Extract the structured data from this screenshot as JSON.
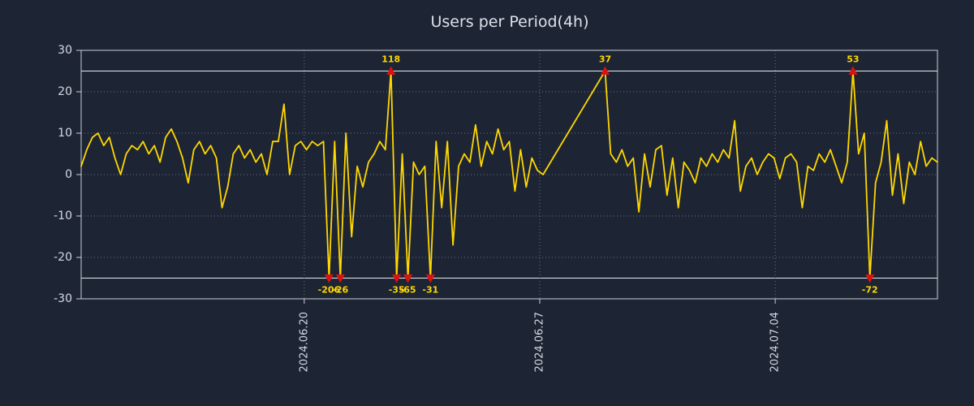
{
  "title": "Users per Period(4h)",
  "colors": {
    "background": "#1d2534",
    "title": "#dce1ea",
    "line": "#ffd700",
    "marker": "#dd1111",
    "marker_label": "#ffd700",
    "axis_text": "#d4d9e2",
    "grid": "#8a93a5",
    "clip_line": "#e6e9ef",
    "border": "#c9ced8"
  },
  "chart_data": {
    "type": "line",
    "title": "Users per Period(4h)",
    "xlabel": "",
    "ylabel": "",
    "ylim": [
      -30,
      30
    ],
    "yticks": [
      30,
      20,
      10,
      0,
      -10,
      -20,
      -30
    ],
    "clip_threshold": 25,
    "grid": true,
    "legend": false,
    "x_ticks": [
      {
        "pos": 39.6,
        "label": "2024.06.20"
      },
      {
        "pos": 81.4,
        "label": "2024.06.27"
      },
      {
        "pos": 123.2,
        "label": "2024.07.04"
      }
    ],
    "series": [
      {
        "name": "users",
        "values": [
          2,
          6,
          9,
          10,
          7,
          9,
          4,
          0,
          5,
          7,
          6,
          8,
          5,
          7,
          3,
          9,
          11,
          8,
          4,
          -2,
          6,
          8,
          5,
          7,
          4,
          -8,
          -3,
          5,
          7,
          4,
          6,
          3,
          5,
          0,
          8,
          8,
          17,
          0,
          7,
          8,
          6,
          8,
          7,
          8,
          -206,
          8,
          -26,
          10,
          -15,
          2,
          -3,
          3,
          5,
          8,
          6,
          118,
          -35,
          5,
          -65,
          3,
          0,
          2,
          -31,
          8,
          -8,
          8,
          -17,
          2,
          5,
          3,
          12,
          2,
          8,
          5,
          11,
          6,
          8,
          -4,
          6,
          -3,
          4,
          1,
          0,
          null,
          null,
          null,
          null,
          null,
          null,
          null,
          null,
          null,
          null,
          37,
          5,
          3,
          6,
          2,
          4,
          -9,
          5,
          -3,
          6,
          7,
          -5,
          4,
          -8,
          3,
          1,
          -2,
          4,
          2,
          5,
          3,
          6,
          4,
          13,
          -4,
          2,
          4,
          0,
          3,
          5,
          4,
          -1,
          4,
          5,
          3,
          -8,
          2,
          1,
          5,
          3,
          6,
          2,
          -2,
          3,
          53,
          5,
          10,
          -72,
          -2,
          3,
          13,
          -5,
          5,
          -7,
          3,
          0,
          8,
          2,
          4,
          3
        ]
      }
    ],
    "annotations": [
      {
        "index": 44,
        "value": -206,
        "label": "-206"
      },
      {
        "index": 46,
        "value": -26,
        "label": "-26"
      },
      {
        "index": 55,
        "value": 118,
        "label": "118"
      },
      {
        "index": 56,
        "value": -35,
        "label": "-35"
      },
      {
        "index": 58,
        "value": -65,
        "label": "-65"
      },
      {
        "index": 62,
        "value": -31,
        "label": "-31"
      },
      {
        "index": 93,
        "value": 37,
        "label": "37"
      },
      {
        "index": 137,
        "value": 53,
        "label": "53"
      },
      {
        "index": 140,
        "value": -72,
        "label": "-72"
      }
    ]
  }
}
